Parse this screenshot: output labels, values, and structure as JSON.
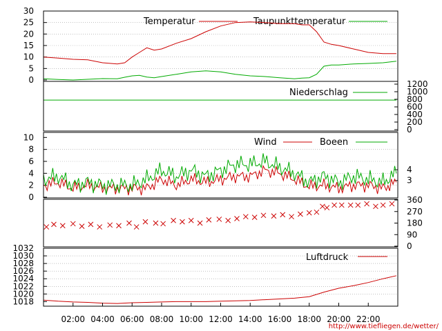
{
  "colors": {
    "red": "#cc0000",
    "green": "#00aa00",
    "grid": "#999999",
    "axis": "#000000"
  },
  "x_labels": [
    "02:00",
    "04:00",
    "06:00",
    "08:00",
    "10:00",
    "12:00",
    "14:00",
    "16:00",
    "18:00",
    "20:00",
    "22:00"
  ],
  "footer_url": "http://www.tiefliegen.de/wetter/",
  "chart_data": [
    {
      "type": "line",
      "legend": [
        "Temperatur",
        "Taupunkttemperatur"
      ],
      "y_ticks": [
        0,
        5,
        10,
        15,
        20,
        25,
        30
      ],
      "ylim": [
        0,
        30
      ],
      "x": [
        0,
        1,
        2,
        3,
        4,
        5,
        5.5,
        6,
        6.5,
        7,
        7.5,
        8,
        9,
        10,
        11,
        12,
        13,
        14,
        15,
        16,
        17,
        17.5,
        18,
        18.5,
        19,
        19.5,
        20,
        21,
        22,
        23,
        23.9
      ],
      "series": [
        {
          "name": "Temperatur",
          "color": "red",
          "values": [
            10,
            9.5,
            9,
            8.8,
            7.5,
            7,
            7.5,
            10,
            12,
            14,
            13,
            13.5,
            16,
            18,
            21,
            23.5,
            25,
            25.3,
            25,
            24.5,
            24.5,
            24,
            24,
            21,
            16.5,
            15.5,
            15,
            13.5,
            12,
            11.5,
            11.5
          ]
        },
        {
          "name": "Taupunkttemperatur",
          "color": "green",
          "values": [
            0.5,
            0.2,
            0,
            0.3,
            0.6,
            0.5,
            1.2,
            1.8,
            2.0,
            1.3,
            1.0,
            1.5,
            2.5,
            3.5,
            4,
            3.5,
            2.5,
            1.8,
            1.5,
            1.0,
            0.5,
            0.8,
            1.0,
            2.5,
            6,
            6.5,
            6.5,
            7,
            7.2,
            7.5,
            8.2
          ]
        }
      ]
    },
    {
      "type": "line",
      "legend": [
        "Niederschlag"
      ],
      "y_ticks": [
        0,
        200,
        400,
        600,
        800,
        1000,
        1200
      ],
      "ylim": [
        0,
        1200
      ],
      "x": [
        0,
        23.9
      ],
      "series": [
        {
          "name": "Niederschlag",
          "color": "green",
          "values": [
            780,
            780
          ]
        }
      ]
    },
    {
      "type": "line",
      "legend": [
        "Wind",
        "Boeen"
      ],
      "y_ticks": [
        0,
        2,
        4,
        6,
        8,
        10
      ],
      "ylim": [
        0,
        10.5
      ],
      "right_ticks": [
        "3",
        "4"
      ],
      "x": [
        0,
        1,
        2,
        3,
        4,
        5,
        6,
        7,
        8,
        9,
        10,
        11,
        12,
        13,
        14,
        15,
        16,
        17,
        18,
        19,
        20,
        21,
        22,
        23,
        23.9
      ],
      "series": [
        {
          "name": "Wind",
          "color": "red",
          "values": [
            2,
            2.5,
            1.5,
            2,
            1.5,
            1.5,
            1.5,
            1.5,
            3,
            2,
            3,
            2.5,
            3,
            3.5,
            3.5,
            4.5,
            4,
            3,
            1.8,
            2,
            1.5,
            2,
            2,
            1.5,
            2.5
          ]
        },
        {
          "name": "Boeen",
          "color": "green",
          "values": [
            3,
            3.5,
            2,
            2.5,
            2,
            2,
            2,
            3,
            4.5,
            3.5,
            4.5,
            3.5,
            4.5,
            5.5,
            5.5,
            6,
            5,
            4,
            2.5,
            3.5,
            2.5,
            3.5,
            3,
            2.5,
            4
          ]
        }
      ]
    },
    {
      "type": "scatter",
      "marker": "x",
      "right_ticks": [
        0,
        90,
        180,
        270,
        360
      ],
      "ylim": [
        0,
        360
      ],
      "x": [
        0.2,
        0.7,
        1.3,
        2.0,
        2.6,
        3.2,
        3.8,
        4.5,
        5.1,
        5.8,
        6.3,
        6.9,
        7.6,
        8.1,
        8.8,
        9.4,
        10.0,
        10.6,
        11.2,
        11.9,
        12.5,
        13.1,
        13.7,
        14.3,
        14.9,
        15.6,
        16.2,
        16.8,
        17.4,
        18.0,
        18.5,
        18.9,
        19.2,
        19.7,
        20.2,
        20.8,
        21.3,
        21.9,
        22.5,
        23.0,
        23.6
      ],
      "values": [
        150,
        170,
        160,
        175,
        155,
        170,
        150,
        165,
        160,
        180,
        150,
        190,
        180,
        175,
        200,
        190,
        200,
        180,
        205,
        210,
        200,
        215,
        230,
        225,
        240,
        235,
        245,
        230,
        250,
        260,
        265,
        310,
        300,
        320,
        320,
        320,
        320,
        330,
        310,
        320,
        330
      ]
    },
    {
      "type": "line",
      "legend": [
        "Luftdruck"
      ],
      "y_ticks": [
        1018,
        1020,
        1022,
        1024,
        1026,
        1028,
        1030,
        1032
      ],
      "ylim": [
        1016.8,
        1032
      ],
      "x": [
        0,
        1,
        2,
        3,
        4,
        5,
        6,
        7,
        8,
        9,
        10,
        11,
        12,
        13,
        14,
        15,
        16,
        17,
        18,
        19,
        20,
        21,
        22,
        23,
        23.9
      ],
      "series": [
        {
          "name": "Luftdruck",
          "color": "red",
          "values": [
            1018.4,
            1018.1,
            1017.9,
            1017.8,
            1017.6,
            1017.5,
            1017.7,
            1017.8,
            1017.9,
            1018.0,
            1018.0,
            1018.0,
            1018.1,
            1018.2,
            1018.3,
            1018.5,
            1018.7,
            1018.9,
            1019.3,
            1020.5,
            1021.5,
            1022.2,
            1023.0,
            1024.0,
            1024.8
          ]
        }
      ]
    }
  ]
}
